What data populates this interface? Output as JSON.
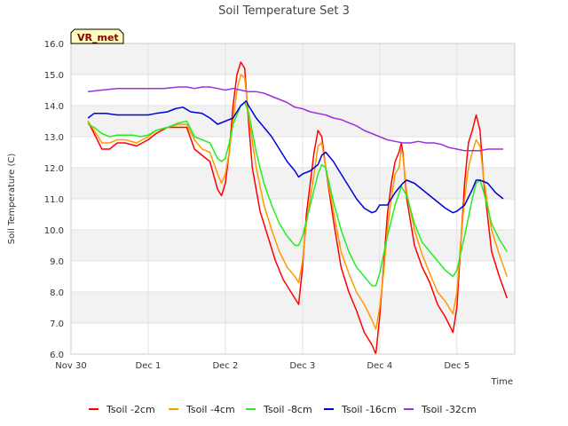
{
  "chart_data": {
    "type": "line",
    "title": "Soil Temperature Set 3",
    "xlabel": "Time",
    "ylabel": "Soil Temperature (C)",
    "badge": "VR_met",
    "ylim": [
      6.0,
      16.0
    ],
    "y_ticks": [
      "6.0",
      "7.0",
      "8.0",
      "9.0",
      "10.0",
      "11.0",
      "12.0",
      "13.0",
      "14.0",
      "15.0",
      "16.0"
    ],
    "xlim": [
      0,
      5.75
    ],
    "x_ticks": [
      {
        "label": "Nov 30",
        "value": 0
      },
      {
        "label": "Dec 1",
        "value": 1
      },
      {
        "label": "Dec 2",
        "value": 2
      },
      {
        "label": "Dec 3",
        "value": 3
      },
      {
        "label": "Dec 4",
        "value": 4
      },
      {
        "label": "Dec 5",
        "value": 5
      }
    ],
    "x_units": "days since Nov 30",
    "grid": true,
    "legend_position": "bottom",
    "series": [
      {
        "name": "Tsoil -2cm",
        "color": "#ff0000",
        "points": [
          [
            0.22,
            13.5
          ],
          [
            0.3,
            13.1
          ],
          [
            0.4,
            12.6
          ],
          [
            0.5,
            12.6
          ],
          [
            0.6,
            12.8
          ],
          [
            0.7,
            12.8
          ],
          [
            0.85,
            12.7
          ],
          [
            1.0,
            12.9
          ],
          [
            1.1,
            13.1
          ],
          [
            1.25,
            13.3
          ],
          [
            1.4,
            13.3
          ],
          [
            1.5,
            13.3
          ],
          [
            1.6,
            12.6
          ],
          [
            1.7,
            12.4
          ],
          [
            1.8,
            12.2
          ],
          [
            1.9,
            11.3
          ],
          [
            1.95,
            11.1
          ],
          [
            2.0,
            11.5
          ],
          [
            2.05,
            12.5
          ],
          [
            2.1,
            14.0
          ],
          [
            2.15,
            15.0
          ],
          [
            2.2,
            15.4
          ],
          [
            2.25,
            15.2
          ],
          [
            2.3,
            13.5
          ],
          [
            2.35,
            12.0
          ],
          [
            2.45,
            10.6
          ],
          [
            2.55,
            9.8
          ],
          [
            2.65,
            9.0
          ],
          [
            2.75,
            8.4
          ],
          [
            2.85,
            8.0
          ],
          [
            2.95,
            7.6
          ],
          [
            3.0,
            8.8
          ],
          [
            3.05,
            10.5
          ],
          [
            3.15,
            12.5
          ],
          [
            3.2,
            13.2
          ],
          [
            3.25,
            13.0
          ],
          [
            3.3,
            12.0
          ],
          [
            3.4,
            10.3
          ],
          [
            3.5,
            8.8
          ],
          [
            3.6,
            8.0
          ],
          [
            3.7,
            7.4
          ],
          [
            3.8,
            6.7
          ],
          [
            3.9,
            6.3
          ],
          [
            3.95,
            6.0
          ],
          [
            4.0,
            7.2
          ],
          [
            4.05,
            8.8
          ],
          [
            4.1,
            10.5
          ],
          [
            4.15,
            11.5
          ],
          [
            4.2,
            12.2
          ],
          [
            4.25,
            12.5
          ],
          [
            4.28,
            12.8
          ],
          [
            4.3,
            12.5
          ],
          [
            4.35,
            11.0
          ],
          [
            4.45,
            9.5
          ],
          [
            4.55,
            8.8
          ],
          [
            4.65,
            8.3
          ],
          [
            4.75,
            7.6
          ],
          [
            4.85,
            7.2
          ],
          [
            4.95,
            6.7
          ],
          [
            5.0,
            7.5
          ],
          [
            5.05,
            9.5
          ],
          [
            5.1,
            11.5
          ],
          [
            5.15,
            12.8
          ],
          [
            5.2,
            13.2
          ],
          [
            5.25,
            13.7
          ],
          [
            5.3,
            13.2
          ],
          [
            5.35,
            11.5
          ],
          [
            5.45,
            9.3
          ],
          [
            5.55,
            8.5
          ],
          [
            5.65,
            7.8
          ]
        ]
      },
      {
        "name": "Tsoil -4cm",
        "color": "#ff9a00",
        "points": [
          [
            0.22,
            13.5
          ],
          [
            0.3,
            13.2
          ],
          [
            0.4,
            12.8
          ],
          [
            0.5,
            12.8
          ],
          [
            0.6,
            12.9
          ],
          [
            0.7,
            12.9
          ],
          [
            0.85,
            12.8
          ],
          [
            1.0,
            13.0
          ],
          [
            1.1,
            13.2
          ],
          [
            1.25,
            13.3
          ],
          [
            1.4,
            13.4
          ],
          [
            1.5,
            13.4
          ],
          [
            1.6,
            12.9
          ],
          [
            1.7,
            12.6
          ],
          [
            1.8,
            12.5
          ],
          [
            1.9,
            11.8
          ],
          [
            1.95,
            11.5
          ],
          [
            2.0,
            11.8
          ],
          [
            2.05,
            12.5
          ],
          [
            2.1,
            13.5
          ],
          [
            2.15,
            14.5
          ],
          [
            2.2,
            15.0
          ],
          [
            2.25,
            14.9
          ],
          [
            2.3,
            13.7
          ],
          [
            2.4,
            12.0
          ],
          [
            2.5,
            10.8
          ],
          [
            2.6,
            10.0
          ],
          [
            2.7,
            9.3
          ],
          [
            2.8,
            8.8
          ],
          [
            2.9,
            8.5
          ],
          [
            2.95,
            8.3
          ],
          [
            3.0,
            9.0
          ],
          [
            3.05,
            10.2
          ],
          [
            3.15,
            11.8
          ],
          [
            3.2,
            12.7
          ],
          [
            3.25,
            12.8
          ],
          [
            3.3,
            12.0
          ],
          [
            3.4,
            10.6
          ],
          [
            3.5,
            9.3
          ],
          [
            3.6,
            8.6
          ],
          [
            3.7,
            8.0
          ],
          [
            3.8,
            7.6
          ],
          [
            3.9,
            7.1
          ],
          [
            3.95,
            6.8
          ],
          [
            4.0,
            7.5
          ],
          [
            4.05,
            8.6
          ],
          [
            4.1,
            10.0
          ],
          [
            4.15,
            11.0
          ],
          [
            4.2,
            11.8
          ],
          [
            4.25,
            12.0
          ],
          [
            4.28,
            12.6
          ],
          [
            4.3,
            12.4
          ],
          [
            4.35,
            11.2
          ],
          [
            4.45,
            10.0
          ],
          [
            4.55,
            9.2
          ],
          [
            4.65,
            8.6
          ],
          [
            4.75,
            8.0
          ],
          [
            4.85,
            7.7
          ],
          [
            4.95,
            7.3
          ],
          [
            5.0,
            8.0
          ],
          [
            5.05,
            9.6
          ],
          [
            5.1,
            11.0
          ],
          [
            5.15,
            12.0
          ],
          [
            5.2,
            12.5
          ],
          [
            5.25,
            12.9
          ],
          [
            5.3,
            12.7
          ],
          [
            5.35,
            11.6
          ],
          [
            5.45,
            10.0
          ],
          [
            5.55,
            9.2
          ],
          [
            5.65,
            8.5
          ]
        ]
      },
      {
        "name": "Tsoil -8cm",
        "color": "#22ee22",
        "points": [
          [
            0.22,
            13.4
          ],
          [
            0.3,
            13.3
          ],
          [
            0.4,
            13.1
          ],
          [
            0.5,
            13.0
          ],
          [
            0.6,
            13.05
          ],
          [
            0.8,
            13.05
          ],
          [
            0.9,
            13.0
          ],
          [
            1.0,
            13.05
          ],
          [
            1.1,
            13.2
          ],
          [
            1.25,
            13.3
          ],
          [
            1.4,
            13.45
          ],
          [
            1.5,
            13.5
          ],
          [
            1.6,
            13.0
          ],
          [
            1.7,
            12.9
          ],
          [
            1.8,
            12.8
          ],
          [
            1.9,
            12.3
          ],
          [
            1.95,
            12.2
          ],
          [
            2.0,
            12.3
          ],
          [
            2.05,
            12.8
          ],
          [
            2.1,
            13.4
          ],
          [
            2.2,
            14.0
          ],
          [
            2.25,
            14.1
          ],
          [
            2.3,
            13.8
          ],
          [
            2.4,
            12.5
          ],
          [
            2.5,
            11.5
          ],
          [
            2.6,
            10.8
          ],
          [
            2.7,
            10.2
          ],
          [
            2.8,
            9.8
          ],
          [
            2.9,
            9.5
          ],
          [
            2.95,
            9.5
          ],
          [
            3.0,
            9.8
          ],
          [
            3.1,
            10.8
          ],
          [
            3.2,
            11.8
          ],
          [
            3.25,
            12.1
          ],
          [
            3.3,
            12.0
          ],
          [
            3.4,
            10.9
          ],
          [
            3.5,
            10.0
          ],
          [
            3.6,
            9.3
          ],
          [
            3.7,
            8.8
          ],
          [
            3.8,
            8.5
          ],
          [
            3.9,
            8.2
          ],
          [
            3.95,
            8.2
          ],
          [
            4.0,
            8.6
          ],
          [
            4.1,
            9.8
          ],
          [
            4.2,
            10.8
          ],
          [
            4.28,
            11.4
          ],
          [
            4.35,
            11.1
          ],
          [
            4.45,
            10.2
          ],
          [
            4.55,
            9.6
          ],
          [
            4.65,
            9.3
          ],
          [
            4.75,
            9.0
          ],
          [
            4.85,
            8.7
          ],
          [
            4.95,
            8.5
          ],
          [
            5.0,
            8.7
          ],
          [
            5.1,
            9.8
          ],
          [
            5.2,
            11.0
          ],
          [
            5.25,
            11.5
          ],
          [
            5.3,
            11.6
          ],
          [
            5.35,
            11.2
          ],
          [
            5.45,
            10.2
          ],
          [
            5.55,
            9.7
          ],
          [
            5.65,
            9.3
          ]
        ]
      },
      {
        "name": "Tsoil -16cm",
        "color": "#0000dd",
        "points": [
          [
            0.22,
            13.6
          ],
          [
            0.3,
            13.75
          ],
          [
            0.45,
            13.75
          ],
          [
            0.6,
            13.7
          ],
          [
            0.8,
            13.7
          ],
          [
            0.9,
            13.7
          ],
          [
            1.0,
            13.7
          ],
          [
            1.1,
            13.75
          ],
          [
            1.25,
            13.8
          ],
          [
            1.35,
            13.9
          ],
          [
            1.45,
            13.95
          ],
          [
            1.55,
            13.8
          ],
          [
            1.7,
            13.75
          ],
          [
            1.8,
            13.6
          ],
          [
            1.9,
            13.4
          ],
          [
            2.0,
            13.5
          ],
          [
            2.1,
            13.6
          ],
          [
            2.2,
            14.0
          ],
          [
            2.27,
            14.15
          ],
          [
            2.3,
            14.0
          ],
          [
            2.4,
            13.6
          ],
          [
            2.5,
            13.3
          ],
          [
            2.6,
            13.0
          ],
          [
            2.7,
            12.6
          ],
          [
            2.8,
            12.2
          ],
          [
            2.9,
            11.9
          ],
          [
            2.95,
            11.7
          ],
          [
            3.0,
            11.8
          ],
          [
            3.1,
            11.9
          ],
          [
            3.2,
            12.1
          ],
          [
            3.25,
            12.4
          ],
          [
            3.3,
            12.5
          ],
          [
            3.4,
            12.2
          ],
          [
            3.5,
            11.8
          ],
          [
            3.6,
            11.4
          ],
          [
            3.7,
            11.0
          ],
          [
            3.8,
            10.7
          ],
          [
            3.9,
            10.55
          ],
          [
            3.95,
            10.6
          ],
          [
            4.0,
            10.8
          ],
          [
            4.1,
            10.8
          ],
          [
            4.2,
            11.2
          ],
          [
            4.3,
            11.5
          ],
          [
            4.35,
            11.6
          ],
          [
            4.45,
            11.5
          ],
          [
            4.55,
            11.3
          ],
          [
            4.65,
            11.1
          ],
          [
            4.75,
            10.9
          ],
          [
            4.85,
            10.7
          ],
          [
            4.95,
            10.55
          ],
          [
            5.0,
            10.6
          ],
          [
            5.1,
            10.8
          ],
          [
            5.2,
            11.3
          ],
          [
            5.25,
            11.6
          ],
          [
            5.3,
            11.6
          ],
          [
            5.4,
            11.5
          ],
          [
            5.5,
            11.2
          ],
          [
            5.6,
            11.0
          ]
        ]
      },
      {
        "name": "Tsoil -32cm",
        "color": "#9b30e0",
        "points": [
          [
            0.22,
            14.45
          ],
          [
            0.4,
            14.5
          ],
          [
            0.6,
            14.55
          ],
          [
            0.8,
            14.55
          ],
          [
            1.0,
            14.55
          ],
          [
            1.2,
            14.55
          ],
          [
            1.4,
            14.6
          ],
          [
            1.5,
            14.6
          ],
          [
            1.6,
            14.55
          ],
          [
            1.7,
            14.6
          ],
          [
            1.8,
            14.6
          ],
          [
            1.9,
            14.55
          ],
          [
            2.0,
            14.5
          ],
          [
            2.1,
            14.55
          ],
          [
            2.2,
            14.5
          ],
          [
            2.3,
            14.45
          ],
          [
            2.4,
            14.45
          ],
          [
            2.5,
            14.4
          ],
          [
            2.6,
            14.3
          ],
          [
            2.7,
            14.2
          ],
          [
            2.8,
            14.1
          ],
          [
            2.9,
            13.95
          ],
          [
            3.0,
            13.9
          ],
          [
            3.1,
            13.8
          ],
          [
            3.2,
            13.75
          ],
          [
            3.3,
            13.7
          ],
          [
            3.4,
            13.6
          ],
          [
            3.5,
            13.55
          ],
          [
            3.6,
            13.45
          ],
          [
            3.7,
            13.35
          ],
          [
            3.8,
            13.2
          ],
          [
            3.9,
            13.1
          ],
          [
            4.0,
            13.0
          ],
          [
            4.1,
            12.9
          ],
          [
            4.2,
            12.85
          ],
          [
            4.3,
            12.8
          ],
          [
            4.4,
            12.8
          ],
          [
            4.5,
            12.85
          ],
          [
            4.6,
            12.8
          ],
          [
            4.7,
            12.8
          ],
          [
            4.8,
            12.75
          ],
          [
            4.9,
            12.65
          ],
          [
            5.0,
            12.6
          ],
          [
            5.1,
            12.55
          ],
          [
            5.2,
            12.55
          ],
          [
            5.3,
            12.55
          ],
          [
            5.4,
            12.6
          ],
          [
            5.5,
            12.6
          ],
          [
            5.6,
            12.6
          ]
        ]
      }
    ]
  }
}
